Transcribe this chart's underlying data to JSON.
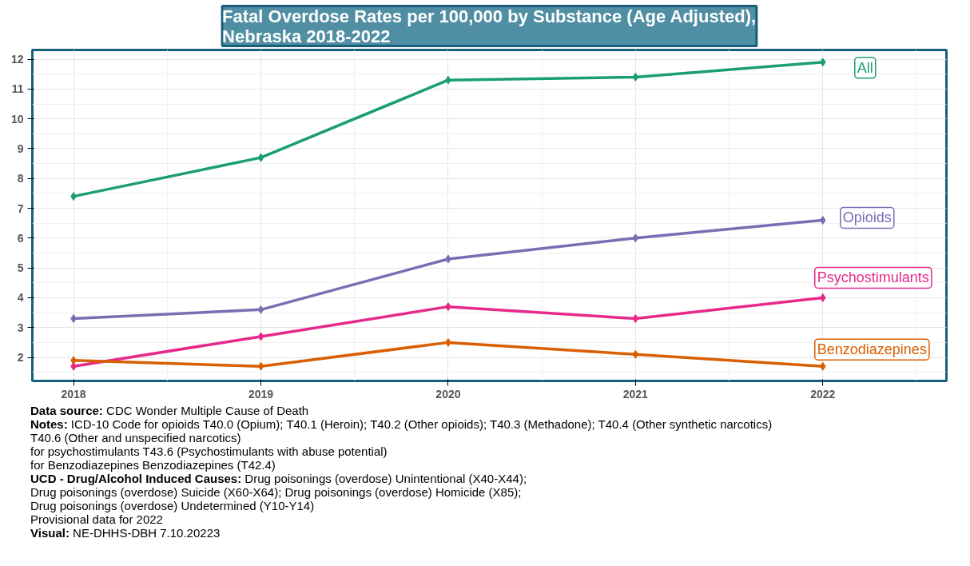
{
  "chart_data": {
    "type": "line",
    "title": "Fatal Overdose Rates per 100,000 by Substance (Age Adjusted),\nNebraska 2018-2022",
    "x": [
      2018,
      2019,
      2020,
      2021,
      2022
    ],
    "series": [
      {
        "name": "All",
        "color": "#1b9e77",
        "values": [
          7.4,
          8.7,
          11.3,
          11.4,
          11.9
        ]
      },
      {
        "name": "Opioids",
        "color": "#7570b3",
        "values": [
          3.3,
          3.6,
          5.3,
          6.0,
          6.6
        ]
      },
      {
        "name": "Psychostimulants",
        "color": "#e7298a",
        "values": [
          1.7,
          2.7,
          3.7,
          3.3,
          4.0
        ]
      },
      {
        "name": "Benzodiazepines",
        "color": "#d95f02",
        "values": [
          1.9,
          1.7,
          2.5,
          2.1,
          1.7
        ]
      }
    ],
    "xlim": [
      2017.78,
      2022.66
    ],
    "xticks": [
      2018,
      2019,
      2020,
      2021,
      2022
    ],
    "ylim": [
      1.21,
      12.31
    ],
    "yticks": [
      2,
      3,
      4,
      5,
      6,
      7,
      8,
      9,
      10,
      11,
      12
    ],
    "grid": true,
    "marker": "diamond",
    "line_style": "solid",
    "annotations": [
      "Data source: CDC Wonder Multiple Cause of Death",
      "Notes: ICD-10 Code for opioids T40.0 (Opium); T40.1 (Heroin); T40.2 (Other opioids); T40.3 (Methadone); T40.4 (Other synthetic narcotics)",
      "T40.6 (Other and unspecified narcotics)",
      "for psychostimulants T43.6 (Psychostimulants with abuse potential)",
      "for Benzodiazepines Benzodiazepines (T42.4)",
      "UCD - Drug/Alcohol Induced Causes: Drug poisonings (overdose) Unintentional (X40-X44);",
      "Drug poisonings (overdose) Suicide (X60-X64); Drug poisonings (overdose) Homicide (X85);",
      "Drug poisonings (overdose) Undetermined (Y10-Y14)",
      "Provisional data for 2022",
      "Visual: NE-DHHS-DBH 7.10.20223"
    ]
  }
}
